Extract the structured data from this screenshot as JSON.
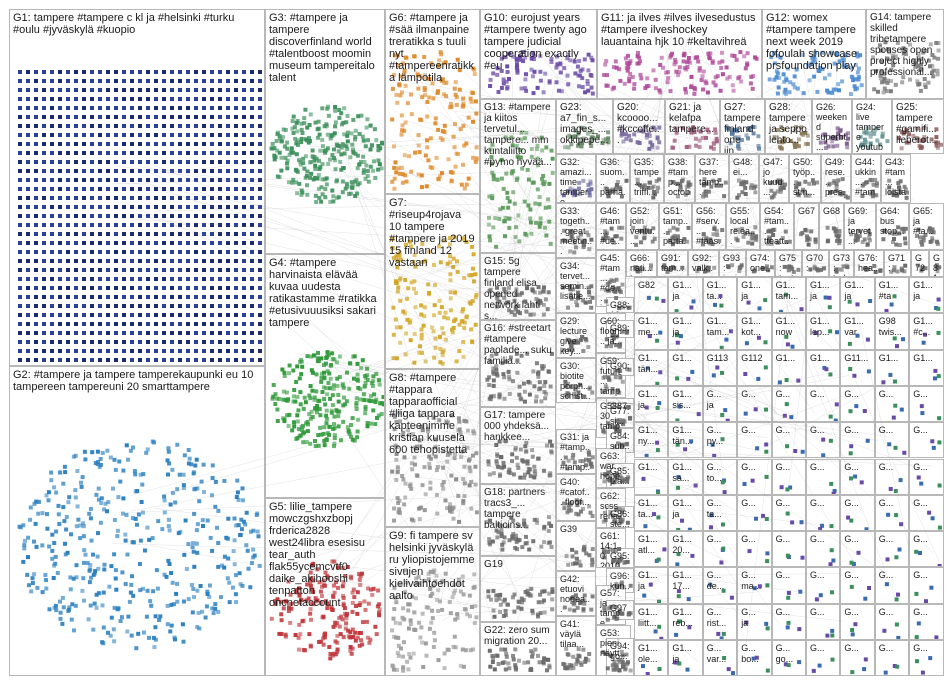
{
  "groups": [
    {
      "id": "G1",
      "label": "G1: tampere #tampere c kl ja #helsinki #turku #oulu #jyväskylä #kuopio",
      "color": "#2b3f9e"
    },
    {
      "id": "G2",
      "label": "G2: #tampere ja tampere tamperekaupunki eu 10 tampereen tampereuni 20 smarttampere",
      "color": "#2a7fc0"
    },
    {
      "id": "G3",
      "label": "G3: #tampere ja tampere discoverfinland world #talentboost moomin museum tampereitalo talent",
      "color": "#3a8f5a"
    },
    {
      "id": "G4",
      "label": "G4: #tampere harvinaista elävää kuvaa uudesta ratikastamme #ratikka #etusivuuusiksi sakari tampere",
      "color": "#2f9a3a"
    },
    {
      "id": "G5",
      "label": "G5: lilie_tampere mowczgshxzbopj frderica2828 west24libra esesisu tear_auth flak55ycemcvtf0 daike_akihooshi tenpatton oncnetaccount",
      "color": "#c0353a"
    },
    {
      "id": "G6",
      "label": "G6: #tampere ja #sää ilmanpaine treratikka s tuuli nyt #tampereenratikka lämpötila",
      "color": "#e08a2a"
    },
    {
      "id": "G7",
      "label": "G7: #riseup4rojava 10 tampere #tampere ja 2019 15 finland 12 vastaan",
      "color": "#d4a828"
    },
    {
      "id": "G8",
      "label": "G8: #tampere #tappara tapparaofficial #liiga tappara kapteenimme kristian kuusela 600 tehopistettä",
      "color": "#8a8a8a"
    },
    {
      "id": "G9",
      "label": "G9: fi tampere sv helsinki jyväskylä ru yliopistojemme sivujen kielivaihtoehdot aalto",
      "color": "#9a9a9a"
    },
    {
      "id": "G10",
      "label": "G10: eurojust years #tampere twenty ago tampere judicial cooperation exactly #eu",
      "color": "#6a4aa8"
    },
    {
      "id": "G11",
      "label": "G11: ja ilves #ilves ilvesedustus #tampere ilveshockey lauantaina hjk 10 #keltavihreä",
      "color": "#b04a9a"
    },
    {
      "id": "G12",
      "label": "G12: womex #tampere tampere next week 2019 fofoulah showcase prsfoundation play",
      "color": "#4a8ad0"
    },
    {
      "id": "G14",
      "label": "G14: tampere skilled tribetampere spouses open project highly professional...",
      "color": "#7a7a7a"
    },
    {
      "id": "G13",
      "label": "G13: #tampere ja kiitos tervetul... tampere... mm kuntaliitto #pymo hyvää...",
      "color": "#5a9a5a"
    },
    {
      "id": "G23",
      "label": "G23: a7_fin_s... images_... okkipepe...",
      "color": "#6a8a6a"
    },
    {
      "id": "G20",
      "label": "G20: kcoooo... #kccoffe...",
      "color": "#7a6aa0"
    },
    {
      "id": "G21",
      "label": "G21: ja kelafpa tampere...",
      "color": "#a05a7a"
    },
    {
      "id": "G27",
      "label": "G27: tampere finland one jin...",
      "color": "#5a7aa0"
    },
    {
      "id": "G28",
      "label": "G28: tampere ja seppo lehto...",
      "color": "#8a7a5a"
    },
    {
      "id": "G26",
      "label": "G26: weekend superbt... new...",
      "color": "#7a5a8a"
    },
    {
      "id": "G24",
      "label": "G24: live tampere youtube nightwis...",
      "color": "#5a8a8a"
    },
    {
      "id": "G25",
      "label": "G25: tampere #gamifi... lieberot...",
      "color": "#8a5a5a"
    },
    {
      "id": "G32",
      "label": "G32: amazi... time tampere...",
      "color": "#6a6aa0"
    },
    {
      "id": "G36",
      "label": "G36: suom... parha...",
      "color": "#6a6a6a"
    },
    {
      "id": "G35",
      "label": "G35: tampe... triffi...",
      "color": "#6a6a6a"
    },
    {
      "id": "G38",
      "label": "G38: #tamp... octob...",
      "color": "#6a6a6a"
    },
    {
      "id": "G37",
      "label": "G37: here tamp...",
      "color": "#6a6a6a"
    },
    {
      "id": "G48",
      "label": "G48: ei...",
      "color": "#6a6a6a"
    },
    {
      "id": "G47",
      "label": "G47: jo kuud...",
      "color": "#6a6a6a"
    },
    {
      "id": "G50",
      "label": "G50: työp... stm...",
      "color": "#6a6a6a"
    },
    {
      "id": "G49",
      "label": "G49: rese... pres...",
      "color": "#6a6a6a"
    },
    {
      "id": "G44",
      "label": "G44: ukkin... #tam...",
      "color": "#6a6a6a"
    },
    {
      "id": "G43",
      "label": "G43: #tam... loista...",
      "color": "#6a6a6a"
    },
    {
      "id": "G33",
      "label": "G33: togeth... great meetin...",
      "color": "#6a6a6a"
    },
    {
      "id": "G46",
      "label": "G46: #tam... #ue... pena...",
      "color": "#6a6a6a"
    },
    {
      "id": "G52",
      "label": "G52: join ventu...",
      "color": "#6a6a6a"
    },
    {
      "id": "G51",
      "label": "G51: tamp... parta...",
      "color": "#6a6a6a"
    },
    {
      "id": "G56",
      "label": "G56: #serv... #faas...",
      "color": "#6a6a6a"
    },
    {
      "id": "G55",
      "label": "G55: local relea...",
      "color": "#6a6a6a"
    },
    {
      "id": "G54",
      "label": "G54: #tam... tteatt...",
      "color": "#6a6a6a"
    },
    {
      "id": "G67",
      "label": "G67",
      "color": "#6a6a6a"
    },
    {
      "id": "G68",
      "label": "G68",
      "color": "#6a6a6a"
    },
    {
      "id": "G69",
      "label": "G69: ja tervet...",
      "color": "#6a6a6a"
    },
    {
      "id": "G64",
      "label": "G64: bus stop...",
      "color": "#6a6a6a"
    },
    {
      "id": "G65",
      "label": "G65: ja #ta...",
      "color": "#6a6a6a"
    },
    {
      "id": "G15",
      "label": "G15: 5g tampere finland elisa opened network lahti s...",
      "color": "#6a6a6a"
    },
    {
      "id": "G34",
      "label": "G34: tervet... semin... lisätie...",
      "color": "#6a6a6a"
    },
    {
      "id": "G45",
      "label": "G45: #tam... #de... iel_l...",
      "color": "#6a6a6a"
    },
    {
      "id": "G66",
      "label": "G66: nati... tam...",
      "color": "#6a6a6a"
    },
    {
      "id": "G91",
      "label": "G91: tam...",
      "color": "#6a6a6a"
    },
    {
      "id": "G92",
      "label": "G92: valk...",
      "color": "#6a6a6a"
    },
    {
      "id": "G93",
      "label": "G93: jani...",
      "color": "#6a6a6a"
    },
    {
      "id": "G74",
      "label": "G74: one...",
      "color": "#6a6a6a"
    },
    {
      "id": "G75",
      "label": "G75: test...",
      "color": "#6a6a6a"
    },
    {
      "id": "G70",
      "label": "G70: eur...",
      "color": "#6a6a6a"
    },
    {
      "id": "G73",
      "label": "G73: tod...",
      "color": "#6a6a6a"
    },
    {
      "id": "G76",
      "label": "G76: hea...",
      "color": "#6a6a6a"
    },
    {
      "id": "G71",
      "label": "G71: ga...",
      "color": "#6a6a6a"
    },
    {
      "id": "G72",
      "label": "G72",
      "color": "#6a6a6a"
    },
    {
      "id": "G81",
      "label": "G81",
      "color": "#6a6a6a"
    },
    {
      "id": "G88",
      "label": "G88: 10...",
      "color": "#6a6a6a"
    },
    {
      "id": "G16",
      "label": "G16: #streetart #tampere paolade... suku familia...",
      "color": "#6a6a6a"
    },
    {
      "id": "G29",
      "label": "G29: lecture give key...",
      "color": "#6a6a6a"
    },
    {
      "id": "G60",
      "label": "G60: floorj... ja...",
      "color": "#6a6a6a"
    },
    {
      "id": "G89",
      "label": "G89: ne...",
      "color": "#6a6a6a"
    },
    {
      "id": "G59",
      "label": "G59: futuri... tamp...",
      "color": "#6a6a6a"
    },
    {
      "id": "G90",
      "label": "G90: ma...",
      "color": "#6a6a6a"
    },
    {
      "id": "G30",
      "label": "G30: biotite porph... schist...",
      "color": "#6a6a6a"
    },
    {
      "id": "G58",
      "label": "G58: 30 tamp...",
      "color": "#6a6a6a"
    },
    {
      "id": "G87",
      "label": "G87",
      "color": "#6a6a6a"
    },
    {
      "id": "G17",
      "label": "G17: tampere 000 yhdeksä... hankkee...",
      "color": "#6a6a6a"
    },
    {
      "id": "G31",
      "label": "G31: ja #tamp... #tamp...",
      "color": "#6a6a6a"
    },
    {
      "id": "G77",
      "label": "G77: si...",
      "color": "#6a6a6a"
    },
    {
      "id": "G84",
      "label": "G84: sub...",
      "color": "#6a6a6a"
    },
    {
      "id": "G63",
      "label": "G63: war... hope...",
      "color": "#6a6a6a"
    },
    {
      "id": "G18",
      "label": "G18: partners tracs3_... tampere balticins...",
      "color": "#6a6a6a"
    },
    {
      "id": "G40",
      "label": "G40: #catof... floof...",
      "color": "#6a6a6a"
    },
    {
      "id": "G85",
      "label": "G85: pla...",
      "color": "#6a6a6a"
    },
    {
      "id": "G62",
      "label": "G62: scss rena...",
      "color": "#6a6a6a"
    },
    {
      "id": "G86",
      "label": "G86: ste...",
      "color": "#6a6a6a"
    },
    {
      "id": "G39",
      "label": "G39",
      "color": "#6a6a6a"
    },
    {
      "id": "G19",
      "label": "G19",
      "color": "#6a6a6a"
    },
    {
      "id": "G61",
      "label": "G61: 14:10 2019...",
      "color": "#6a6a6a"
    },
    {
      "id": "G95",
      "label": "G95: 10...",
      "color": "#6a6a6a"
    },
    {
      "id": "G42",
      "label": "G42: etuovi nopea...",
      "color": "#6a6a6a"
    },
    {
      "id": "G96",
      "label": "G96: kun...",
      "color": "#6a6a6a"
    },
    {
      "id": "G57",
      "label": "G57: ja tampe...",
      "color": "#6a6a6a"
    },
    {
      "id": "G97",
      "label": "G97",
      "color": "#6a6a6a"
    },
    {
      "id": "G22",
      "label": "G22: zero sum migration 20...",
      "color": "#6a6a6a"
    },
    {
      "id": "G41",
      "label": "G41: väylä tilaa...",
      "color": "#6a6a6a"
    },
    {
      "id": "G53",
      "label": "G53: pieni näytt...",
      "color": "#6a6a6a"
    },
    {
      "id": "G94",
      "label": "G94: go...",
      "color": "#6a6a6a"
    }
  ],
  "grid_labels": [
    [
      "G82",
      "G1...",
      "G1...",
      "G1...",
      "G1...",
      "G1...",
      "G1...",
      "G1...",
      "G1..."
    ],
    [
      "G1...",
      "G1...",
      "G1...",
      "G1...",
      "G1...",
      "G1...",
      "G1...",
      "G98",
      "G1..."
    ],
    [
      "G1...",
      "G1...",
      "G113",
      "G112",
      "G1...",
      "G1...",
      "G11...",
      "G1...",
      "G1..."
    ],
    [
      "G1...",
      "G1...",
      "G...",
      "G...",
      "G...",
      "G...",
      "G...",
      "G...",
      "G..."
    ],
    [
      "G1...",
      "G1...",
      "G...",
      "G...",
      "G...",
      "G...",
      "G...",
      "G...",
      "G..."
    ],
    [
      "G1...",
      "G1...",
      "G...",
      "G...",
      "G...",
      "G...",
      "G...",
      "G...",
      "G..."
    ],
    [
      "G1...",
      "G1...",
      "G...",
      "G...",
      "G...",
      "G...",
      "G...",
      "G...",
      "G..."
    ],
    [
      "G1...",
      "G1...",
      "G...",
      "G...",
      "G...",
      "G...",
      "G...",
      "G...",
      "G..."
    ],
    [
      "G1...",
      "G1...",
      "G...",
      "G...",
      "G...",
      "G...",
      "G...",
      "G...",
      "G..."
    ],
    [
      "G1...",
      "G1...",
      "G...",
      "G...",
      "G...",
      "G...",
      "G...",
      "G...",
      "G..."
    ],
    [
      "G1...",
      "G1...",
      "G...",
      "G...",
      "G...",
      "G...",
      "G...",
      "G...",
      "G..."
    ]
  ],
  "grid_texts": [
    [
      "",
      "ja",
      "ta...",
      "ja",
      "tam...",
      "ja",
      "ja",
      "#ta",
      "ja"
    ],
    [
      "me...",
      "ja",
      "tam...",
      "kot...",
      "now",
      "lep...",
      "var",
      "twis...",
      "#c..."
    ],
    [
      "tän...",
      "",
      "",
      "",
      "",
      "",
      "",
      "",
      ""
    ],
    [
      "ja",
      "sis...",
      "ja",
      "",
      "",
      "",
      "",
      "",
      ""
    ],
    [
      "ny...",
      "tän...",
      "py...",
      "",
      "",
      "",
      "",
      "",
      ""
    ],
    [
      "",
      "sa...",
      "to...",
      "",
      "",
      "",
      "",
      "",
      ""
    ],
    [
      "ta...",
      "ja",
      "ta...",
      "",
      "",
      "",
      "",
      "",
      ""
    ],
    [
      "atl...",
      "20...",
      "",
      "",
      "",
      "",
      "",
      "",
      ""
    ],
    [
      "ja",
      "17...",
      "de...",
      "ma...",
      "",
      "",
      "",
      "",
      ""
    ],
    [
      "liitt...",
      "reb...",
      "rist...",
      "ja",
      "",
      "",
      "",
      "",
      ""
    ],
    [
      "ole...",
      "ja",
      "var...",
      "bo...",
      "go...",
      "",
      "",
      "",
      ""
    ]
  ]
}
